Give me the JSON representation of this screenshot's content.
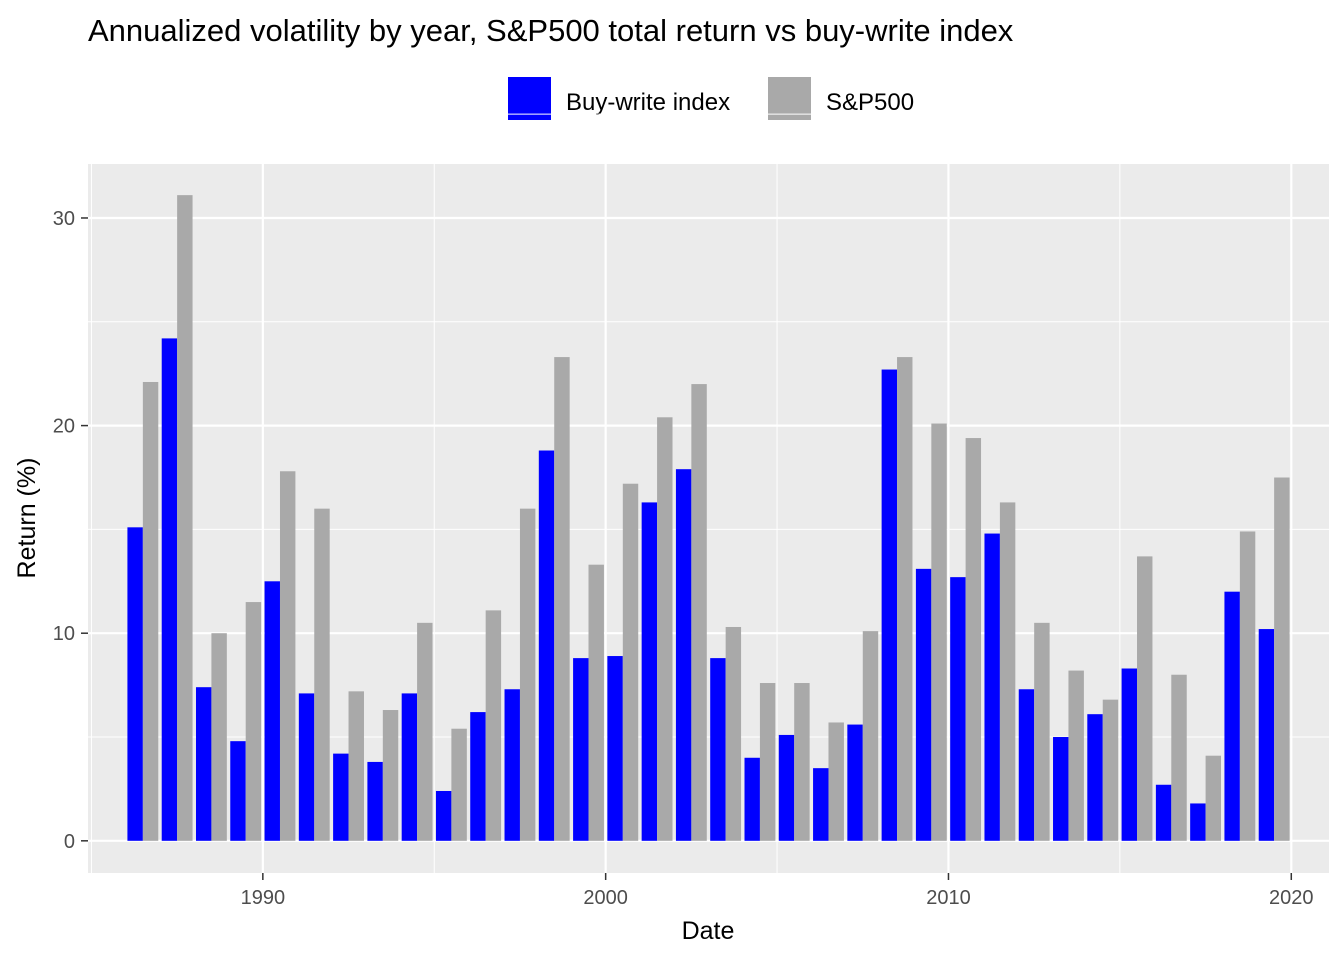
{
  "chart_data": {
    "type": "bar",
    "title": "Annualized volatility by year, S&P500 total return vs buy-write index",
    "xlabel": "Date",
    "ylabel": "Return (%)",
    "x_ticks": [
      "1990",
      "2000",
      "2010",
      "2020"
    ],
    "y_ticks": [
      "0",
      "10",
      "20",
      "30"
    ],
    "xlim": [
      1984.9,
      2021.1
    ],
    "ylim": [
      -1.55,
      32.6
    ],
    "grid": true,
    "legend_position": "top",
    "years": [
      1986,
      1987,
      1988,
      1989,
      1990,
      1991,
      1992,
      1993,
      1994,
      1995,
      1996,
      1997,
      1998,
      1999,
      2000,
      2001,
      2002,
      2003,
      2004,
      2005,
      2006,
      2007,
      2008,
      2009,
      2010,
      2011,
      2012,
      2013,
      2014,
      2015,
      2016,
      2017,
      2018,
      2019
    ],
    "series": [
      {
        "name": "Buy-write index",
        "color": "#0000FF",
        "values": [
          15.1,
          24.2,
          7.4,
          4.8,
          12.5,
          7.1,
          4.2,
          3.8,
          7.1,
          2.4,
          6.2,
          7.3,
          18.8,
          8.8,
          8.9,
          16.3,
          17.9,
          8.8,
          4.0,
          5.1,
          3.5,
          5.6,
          22.7,
          13.1,
          12.7,
          14.8,
          7.3,
          5.0,
          6.1,
          8.3,
          2.7,
          1.8,
          12.0,
          10.2
        ]
      },
      {
        "name": "S&P500",
        "color": "#A9A9A9",
        "values": [
          22.1,
          31.1,
          10.0,
          11.5,
          17.8,
          16.0,
          7.2,
          6.3,
          10.5,
          5.4,
          11.1,
          16.0,
          23.3,
          13.3,
          17.2,
          20.4,
          22.0,
          10.3,
          7.6,
          7.6,
          5.7,
          10.1,
          23.3,
          20.1,
          19.4,
          16.3,
          10.5,
          8.2,
          6.8,
          13.7,
          8.0,
          4.1,
          14.9,
          17.5
        ]
      }
    ]
  }
}
